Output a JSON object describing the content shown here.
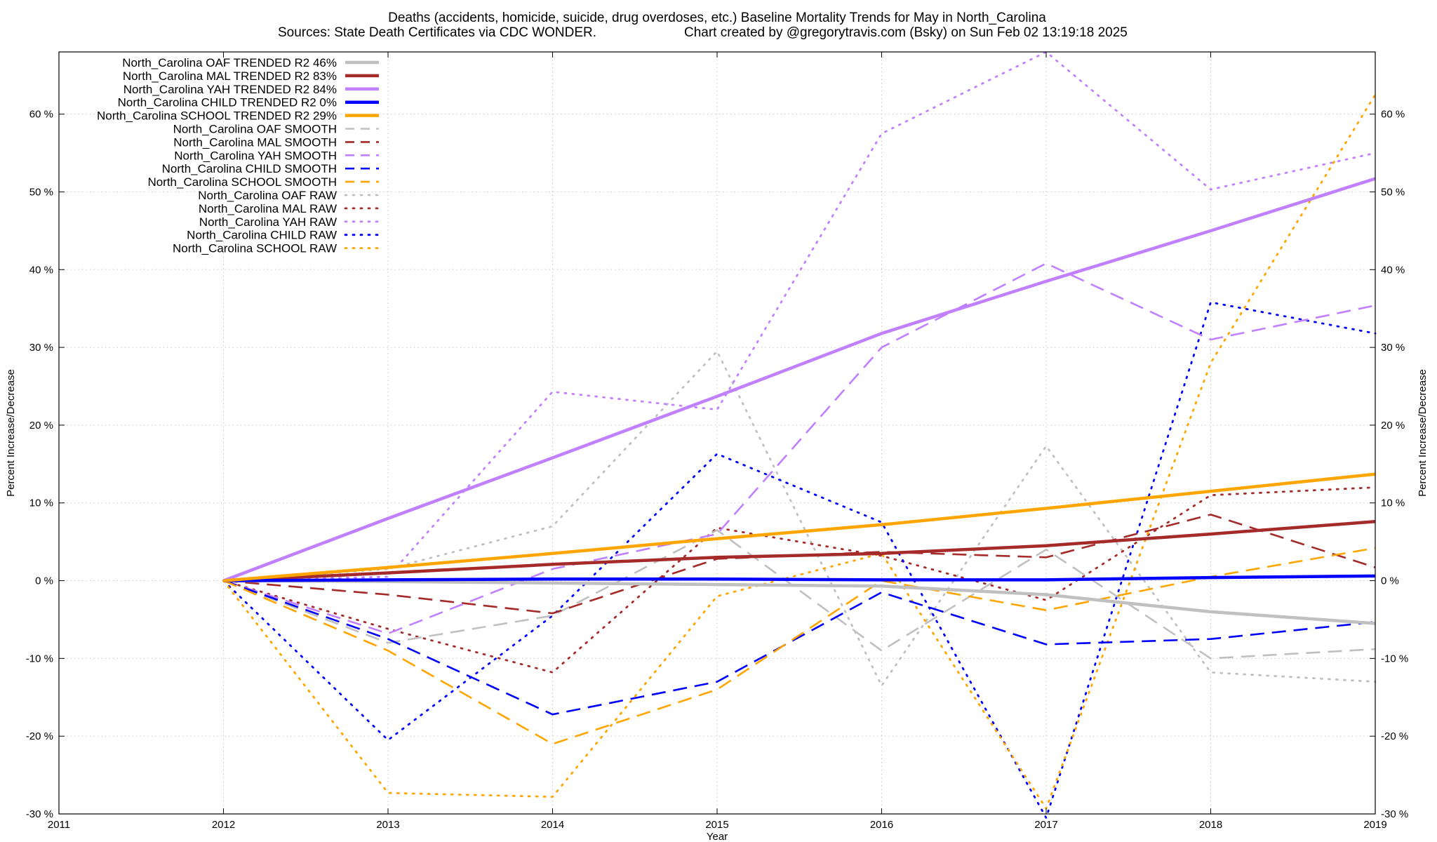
{
  "chart_data": {
    "type": "line",
    "title": "Deaths (accidents, homicide, suicide, drug overdoses, etc.)  Baseline Mortality Trends for May in North_Carolina",
    "subtitle_left": "Sources: State Death Certificates via CDC WONDER.",
    "subtitle_right": "Chart created by @gregorytravis.com (Bsky) on Sun Feb 02 13:19:18 2025",
    "xlabel": "Year",
    "ylabel": "Percent Increase/Decrease",
    "y2label": "Percent Increase/Decrease",
    "xlim": [
      2011,
      2019
    ],
    "ylim": [
      -30,
      68
    ],
    "x_ticks": [
      "2011",
      "2012",
      "2013",
      "2014",
      "2015",
      "2016",
      "2017",
      "2018",
      "2019"
    ],
    "y_ticks": [
      "-30 %",
      "-20 %",
      "-10 %",
      "0 %",
      "10 %",
      "20 %",
      "30 %",
      "40 %",
      "50 %",
      "60 %"
    ],
    "y_tick_values": [
      -30,
      -20,
      -10,
      0,
      10,
      20,
      30,
      40,
      50,
      60
    ],
    "grid": true,
    "legend_position": "top-left",
    "series": [
      {
        "name": "North_Carolina OAF TRENDED R2  46%",
        "style": "trended",
        "color": "#c0c0c0",
        "x": [
          2012,
          2013,
          2014,
          2015,
          2016,
          2017,
          2018,
          2019
        ],
        "values": [
          0,
          -0.1,
          -0.3,
          -0.5,
          -0.7,
          -1.8,
          -4.0,
          -5.5
        ]
      },
      {
        "name": "North_Carolina MAL TRENDED R2  83%",
        "style": "trended",
        "color": "#a52a2a",
        "x": [
          2012,
          2013,
          2014,
          2015,
          2016,
          2017,
          2018,
          2019
        ],
        "values": [
          0,
          1.0,
          2.1,
          3.0,
          3.5,
          4.5,
          6.0,
          7.6
        ]
      },
      {
        "name": "North_Carolina YAH TRENDED R2  84%",
        "style": "trended",
        "color": "#c080ff",
        "x": [
          2012,
          2013,
          2014,
          2015,
          2016,
          2017,
          2018,
          2019
        ],
        "values": [
          0,
          8.0,
          15.8,
          23.7,
          31.8,
          38.5,
          45.0,
          51.7
        ]
      },
      {
        "name": "North_Carolina CHILD TRENDED R2   0%",
        "style": "trended",
        "color": "#0000ff",
        "x": [
          2012,
          2013,
          2014,
          2015,
          2016,
          2017,
          2018,
          2019
        ],
        "values": [
          0,
          0.1,
          0.2,
          0.2,
          0.1,
          0.1,
          0.4,
          0.6
        ]
      },
      {
        "name": "North_Carolina SCHOOL TRENDED R2  29%",
        "style": "trended",
        "color": "#ffa500",
        "x": [
          2012,
          2013,
          2014,
          2015,
          2016,
          2017,
          2018,
          2019
        ],
        "values": [
          0,
          1.7,
          3.5,
          5.4,
          7.2,
          9.3,
          11.5,
          13.7
        ]
      },
      {
        "name": "North_Carolina OAF SMOOTH",
        "style": "smooth",
        "color": "#c0c0c0",
        "x": [
          2012,
          2013,
          2014,
          2015,
          2016,
          2017,
          2018,
          2019
        ],
        "values": [
          0,
          -8.0,
          -4.5,
          6.5,
          -9.0,
          4.0,
          -10.0,
          -8.8
        ]
      },
      {
        "name": "North_Carolina MAL SMOOTH",
        "style": "smooth",
        "color": "#a52a2a",
        "x": [
          2012,
          2013,
          2014,
          2015,
          2016,
          2017,
          2018,
          2019
        ],
        "values": [
          0,
          -1.8,
          -4.2,
          2.8,
          3.7,
          3.0,
          8.5,
          1.7
        ]
      },
      {
        "name": "North_Carolina YAH SMOOTH",
        "style": "smooth",
        "color": "#c080ff",
        "x": [
          2012,
          2013,
          2014,
          2015,
          2016,
          2017,
          2018,
          2019
        ],
        "values": [
          0,
          -6.8,
          1.5,
          6.0,
          30.0,
          40.8,
          31.0,
          35.4
        ]
      },
      {
        "name": "North_Carolina CHILD SMOOTH",
        "style": "smooth",
        "color": "#0000ff",
        "x": [
          2012,
          2013,
          2014,
          2015,
          2016,
          2017,
          2018,
          2019
        ],
        "values": [
          0,
          -7.5,
          -17.2,
          -13.0,
          -1.5,
          -8.2,
          -7.5,
          -5.3
        ]
      },
      {
        "name": "North_Carolina SCHOOL SMOOTH",
        "style": "smooth",
        "color": "#ffa500",
        "x": [
          2012,
          2013,
          2014,
          2015,
          2016,
          2017,
          2018,
          2019
        ],
        "values": [
          0,
          -9.0,
          -21.0,
          -14.0,
          0.0,
          -3.8,
          0.5,
          4.2
        ]
      },
      {
        "name": "North_Carolina OAF RAW",
        "style": "raw",
        "color": "#c0c0c0",
        "x": [
          2012,
          2013,
          2014,
          2015,
          2016,
          2017,
          2018,
          2019
        ],
        "values": [
          0,
          1.5,
          7.0,
          29.5,
          -13.5,
          17.3,
          -11.8,
          -13.0
        ]
      },
      {
        "name": "North_Carolina MAL RAW",
        "style": "raw",
        "color": "#a52a2a",
        "x": [
          2012,
          2013,
          2014,
          2015,
          2016,
          2017,
          2018,
          2019
        ],
        "values": [
          0,
          -6.2,
          -11.8,
          6.8,
          3.2,
          -2.5,
          11.0,
          12.0
        ]
      },
      {
        "name": "North_Carolina YAH RAW",
        "style": "raw",
        "color": "#c080ff",
        "x": [
          2012,
          2013,
          2014,
          2015,
          2016,
          2017,
          2018,
          2019
        ],
        "values": [
          0,
          0.5,
          24.3,
          22.0,
          57.5,
          68.0,
          50.3,
          55.0
        ]
      },
      {
        "name": "North_Carolina CHILD RAW",
        "style": "raw",
        "color": "#0000ff",
        "x": [
          2012,
          2013,
          2014,
          2015,
          2016,
          2017,
          2018,
          2019
        ],
        "values": [
          0,
          -20.5,
          -4.5,
          16.3,
          7.5,
          -30.5,
          35.8,
          31.8
        ]
      },
      {
        "name": "North_Carolina SCHOOL RAW",
        "style": "raw",
        "color": "#ffa500",
        "x": [
          2012,
          2013,
          2014,
          2015,
          2016,
          2017,
          2018,
          2019
        ],
        "values": [
          0,
          -27.3,
          -27.8,
          -2.0,
          3.5,
          -29.3,
          28.0,
          62.5
        ]
      }
    ]
  }
}
